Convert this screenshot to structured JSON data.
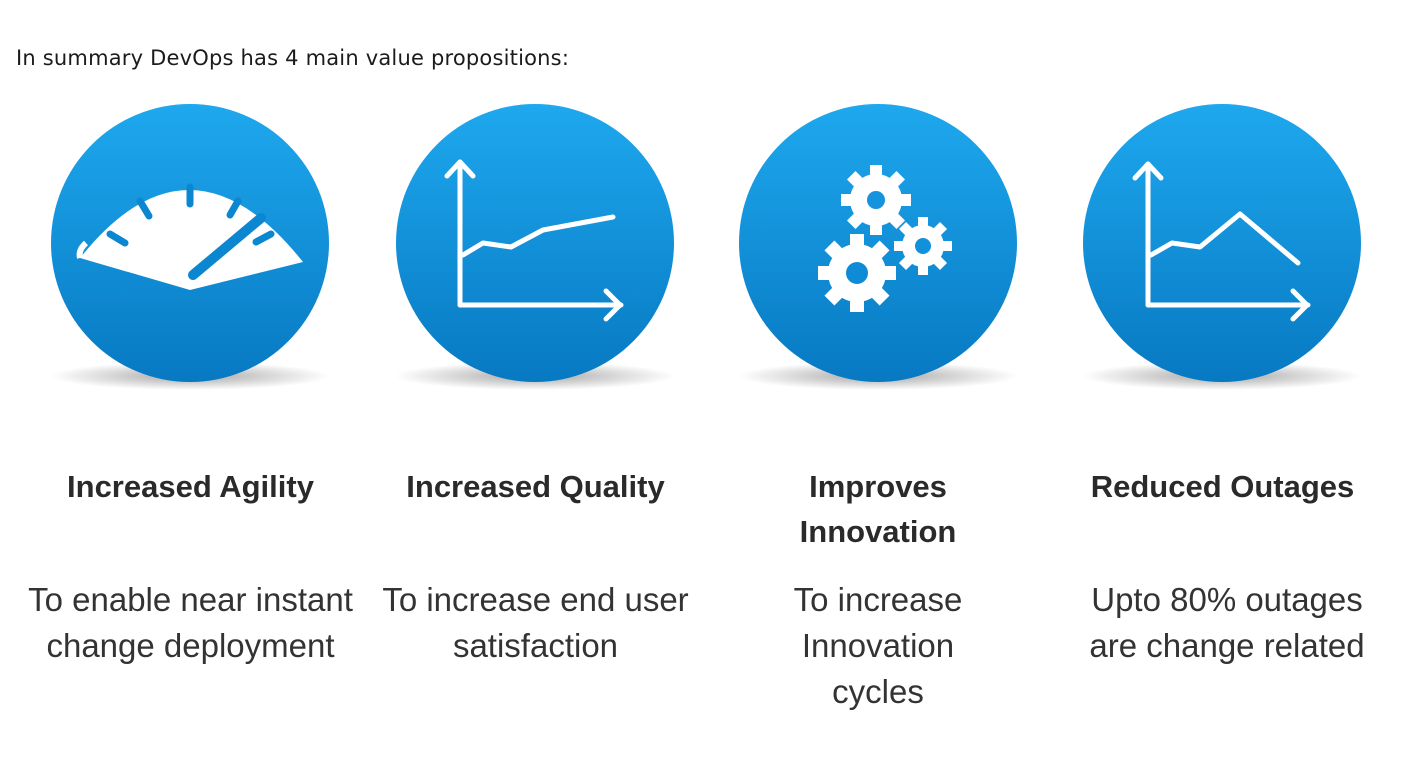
{
  "intro": "In summary DevOps has 4 main value propositions:",
  "theme": {
    "circle_top": "#1aa3ea",
    "circle_bottom": "#0a7ec7",
    "icon": "#ffffff"
  },
  "propositions": [
    {
      "icon": "speedometer-icon",
      "title": "Increased Agility",
      "description": "To enable near instant change deployment"
    },
    {
      "icon": "rising-line-chart-icon",
      "title": "Increased Quality",
      "description": "To increase end user satisfaction"
    },
    {
      "icon": "gears-icon",
      "title": "Improves Innovation",
      "description": "To increase Innovation cycles"
    },
    {
      "icon": "peak-line-chart-icon",
      "title": "Reduced Outages",
      "description": "Upto 80% outages are change related"
    }
  ]
}
